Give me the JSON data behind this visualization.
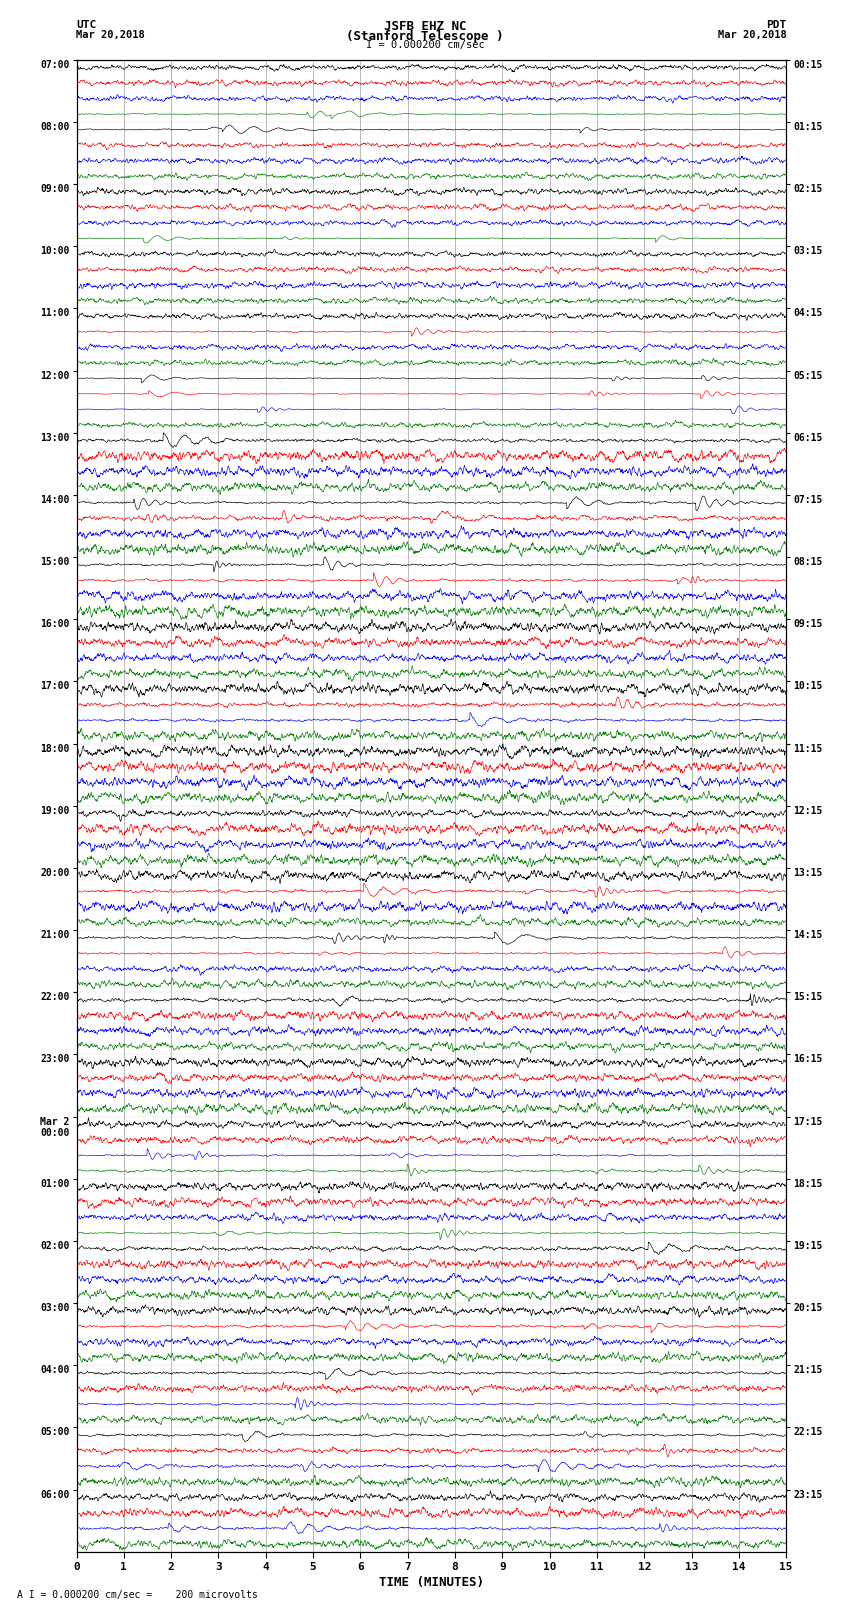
{
  "title_line1": "JSFB EHZ NC",
  "title_line2": "(Stanford Telescope )",
  "scale_label": "I = 0.000200 cm/sec",
  "bottom_label": "A I = 0.000200 cm/sec =    200 microvolts",
  "xlabel": "TIME (MINUTES)",
  "left_times": [
    "07:00",
    "08:00",
    "09:00",
    "10:00",
    "11:00",
    "12:00",
    "13:00",
    "14:00",
    "15:00",
    "16:00",
    "17:00",
    "18:00",
    "19:00",
    "20:00",
    "21:00",
    "22:00",
    "23:00",
    "00:00",
    "01:00",
    "02:00",
    "03:00",
    "04:00",
    "05:00",
    "06:00"
  ],
  "right_times": [
    "00:15",
    "01:15",
    "02:15",
    "03:15",
    "04:15",
    "05:15",
    "06:15",
    "07:15",
    "08:15",
    "09:15",
    "10:15",
    "11:15",
    "12:15",
    "13:15",
    "14:15",
    "15:15",
    "16:15",
    "17:15",
    "18:15",
    "19:15",
    "20:15",
    "21:15",
    "22:15",
    "23:15"
  ],
  "colors": [
    "black",
    "red",
    "blue",
    "green"
  ],
  "n_rows": 24,
  "n_traces_per_row": 4,
  "minutes": 15,
  "background_color": "white",
  "figsize": [
    8.5,
    16.13
  ],
  "dpi": 100,
  "mar2_row": 17
}
